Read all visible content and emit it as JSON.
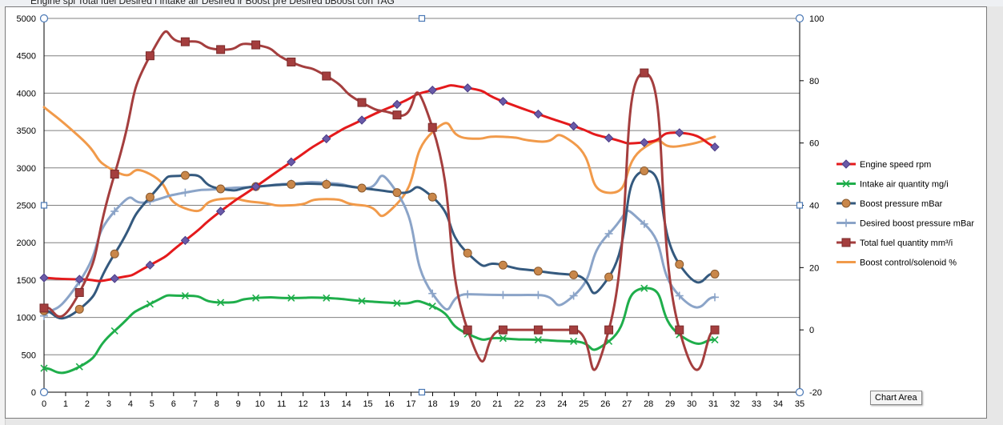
{
  "sheet": {
    "header_text": "Engine spi Total fuel Desired i Intake air Desired ir Boost pre Desired bBoost con TAG"
  },
  "tooltip": {
    "label": "Chart Area"
  },
  "colors": {
    "engine_speed": "#e41a1c",
    "intake_air": "#1fae4b",
    "boost_pressure": "#34597e",
    "desired_boost": "#8ba4c8",
    "total_fuel": "#a43e3e",
    "boost_control": "#f19a4a",
    "gridline": "#808080",
    "handle": "#4a78b5"
  },
  "chart_data": {
    "type": "line",
    "smooth": true,
    "grid": true,
    "legend_position": "right",
    "x_axis": {
      "min": 0,
      "max": 35,
      "ticks": [
        0,
        1,
        2,
        3,
        4,
        5,
        6,
        7,
        8,
        9,
        10,
        11,
        12,
        13,
        14,
        15,
        16,
        17,
        18,
        19,
        20,
        21,
        22,
        23,
        24,
        25,
        26,
        27,
        28,
        29,
        30,
        31,
        32,
        33,
        34,
        35
      ]
    },
    "y_axis_left": {
      "min": 0,
      "max": 5000,
      "ticks": [
        0,
        500,
        1000,
        1500,
        2000,
        2500,
        3000,
        3500,
        4000,
        4500,
        5000
      ]
    },
    "y_axis_right": {
      "min": -20,
      "max": 100,
      "ticks": [
        -20,
        0,
        20,
        40,
        60,
        80,
        100
      ]
    },
    "x": [
      0,
      1.64,
      3.27,
      4.91,
      6.54,
      8.18,
      9.81,
      11.45,
      13.08,
      14.72,
      16.35,
      17.99,
      19.62,
      21.26,
      22.89,
      24.53,
      26.16,
      27.8,
      29.43,
      31.07
    ],
    "series": [
      {
        "key": "engine_speed",
        "name": "Engine speed rpm",
        "axis": "left",
        "marker": "diamond",
        "values": [
          1530,
          1510,
          1520,
          1700,
          2030,
          2420,
          2750,
          3080,
          3390,
          3640,
          3850,
          4040,
          4070,
          3890,
          3720,
          3560,
          3400,
          3340,
          3470,
          3280
        ]
      },
      {
        "key": "intake_air",
        "name": "Intake air quantity mg/i",
        "axis": "left",
        "marker": "x",
        "values": [
          320,
          340,
          820,
          1180,
          1290,
          1200,
          1260,
          1260,
          1260,
          1220,
          1190,
          1150,
          780,
          720,
          700,
          680,
          680,
          1390,
          770,
          700
        ]
      },
      {
        "key": "boost_pressure",
        "name": "Boost pressure mBar",
        "axis": "left",
        "marker": "circle",
        "values": [
          1090,
          1110,
          1850,
          2610,
          2900,
          2720,
          2750,
          2780,
          2780,
          2730,
          2670,
          2610,
          1860,
          1700,
          1620,
          1570,
          1540,
          2960,
          1710,
          1580
        ]
      },
      {
        "key": "desired_boost",
        "name": "Desired boost pressure mBar",
        "axis": "left",
        "marker": "plus",
        "values": [
          1020,
          1480,
          2420,
          2550,
          2670,
          2720,
          2750,
          2790,
          2800,
          2730,
          2670,
          1320,
          1310,
          1300,
          1300,
          1290,
          2120,
          2250,
          1290,
          1270
        ]
      },
      {
        "key": "total_fuel",
        "name": "Total fuel quantity mm³/i",
        "axis": "right",
        "marker": "square",
        "values": [
          7,
          12,
          50,
          88,
          92.5,
          90,
          91.5,
          86,
          81.5,
          73,
          69,
          65,
          0,
          0,
          0,
          0,
          0,
          82.5,
          0,
          0
        ]
      },
      {
        "key": "boost_control",
        "name": "Boost control/solenoid %",
        "axis": "right",
        "marker": "none",
        "values": [
          71.5,
          62,
          51,
          50,
          39,
          42,
          41,
          40,
          42,
          40,
          40.5,
          63.5,
          61.5,
          62,
          60.5,
          60,
          44,
          58.5,
          59,
          62
        ]
      }
    ]
  }
}
